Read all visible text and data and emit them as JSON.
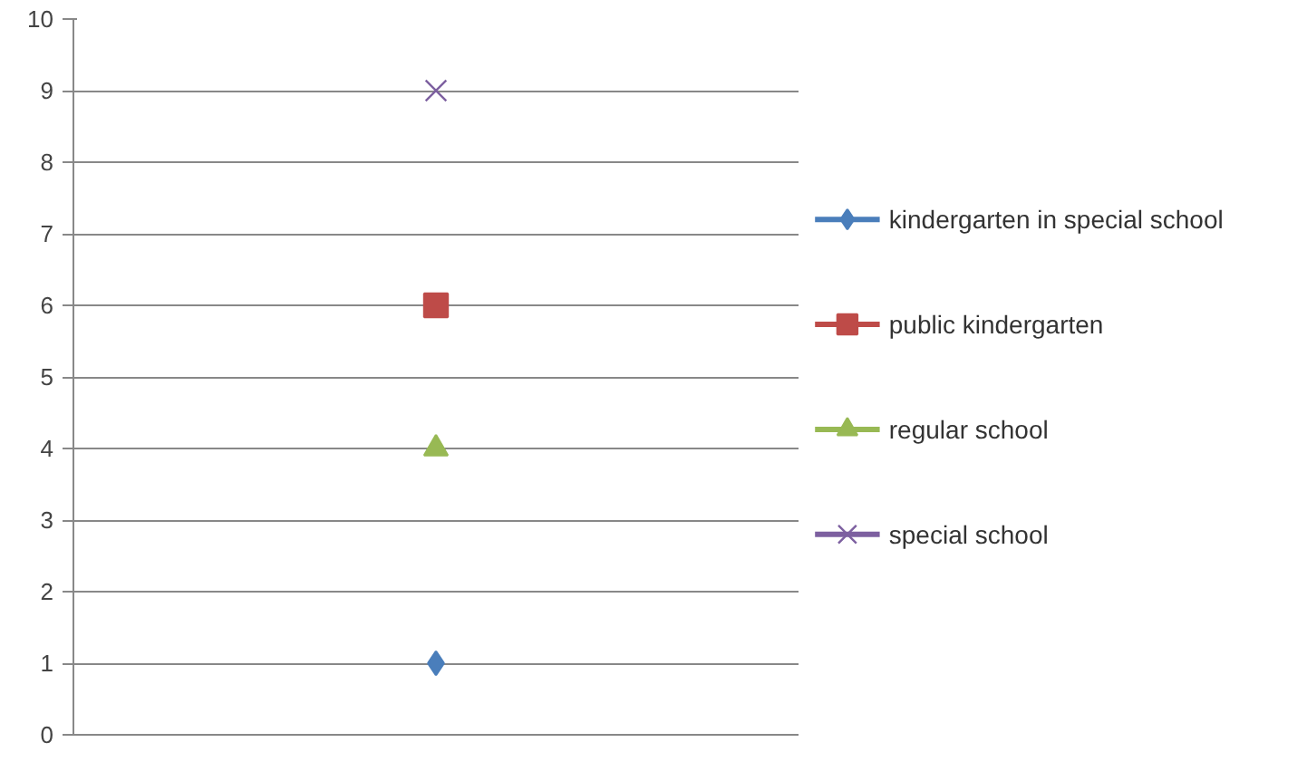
{
  "chart_data": {
    "type": "line",
    "categories": [
      null
    ],
    "series": [
      {
        "name": "kindergarten in special school",
        "color": "#4a7ebb",
        "marker": "diamond",
        "values": [
          1
        ]
      },
      {
        "name": "public kindergarten",
        "color": "#be4b48",
        "marker": "square",
        "values": [
          6
        ]
      },
      {
        "name": "regular school",
        "color": "#98b954",
        "marker": "triangle",
        "values": [
          4
        ]
      },
      {
        "name": "special school",
        "color": "#7d60a0",
        "marker": "cross",
        "values": [
          9
        ]
      }
    ],
    "ylim": [
      0,
      10
    ],
    "yticks": [
      0,
      1,
      2,
      3,
      4,
      5,
      6,
      7,
      8,
      9,
      10
    ],
    "grid": "y",
    "legend": "right"
  }
}
